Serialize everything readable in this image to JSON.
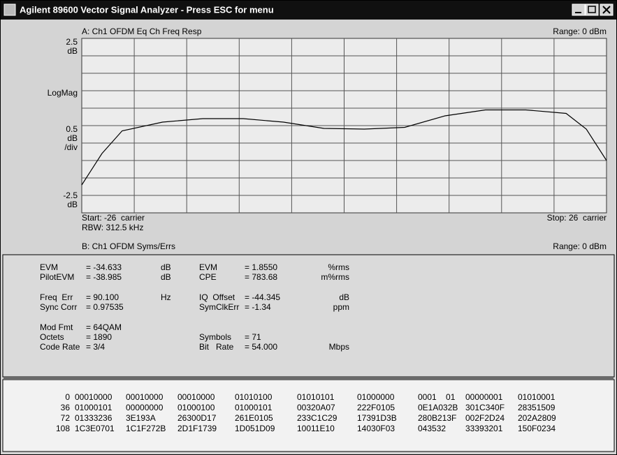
{
  "window": {
    "title": "Agilent 89600 Vector Signal Analyzer - Press ESC for menu"
  },
  "trace_panel": {
    "label": "A: Ch1 OFDM Eq Ch Freq Resp",
    "range": "Range: 0 dBm",
    "y_labels": {
      "top": [
        "2.5",
        "dB"
      ],
      "middle": "LogMag",
      "scale": [
        "0.5",
        "dB",
        "/div"
      ],
      "bottom": [
        "-2.5",
        "dB"
      ]
    },
    "start": "Start: -26  carrier",
    "stop": "Stop: 26  carrier",
    "rbw": "RBW: 312.5 kHz",
    "chart_data": {
      "type": "line",
      "x": [
        -26,
        -24,
        -22,
        -18,
        -14,
        -10,
        -6,
        -2,
        2,
        6,
        10,
        14,
        18,
        22,
        24,
        26
      ],
      "values": [
        -1.7,
        -0.8,
        -0.15,
        0.1,
        0.2,
        0.2,
        0.1,
        -0.08,
        -0.1,
        -0.05,
        0.28,
        0.45,
        0.45,
        0.35,
        -0.1,
        -1.0
      ],
      "xlim": [
        -26,
        26
      ],
      "ylim": [
        -2.5,
        2.5
      ],
      "color": "#000000"
    }
  },
  "measure_panel": {
    "label": "B: Ch1 OFDM Syms/Errs",
    "range": "Range: 0 dBm",
    "left": [
      {
        "name": "EVM",
        "value": "= -34.633",
        "unit": "dB"
      },
      {
        "name": "PilotEVM",
        "value": "= -38.985",
        "unit": "dB"
      },
      {
        "name": "Freq  Err",
        "value": "= 90.100",
        "unit": "Hz"
      },
      {
        "name": "Sync Corr",
        "value": "= 0.97535"
      },
      {
        "name": "Mod Fmt",
        "value": "= 64QAM"
      },
      {
        "name": "Octets",
        "value": "= 1890"
      },
      {
        "name": "Code Rate",
        "value": "= 3/4"
      }
    ],
    "right": [
      {
        "name": "EVM",
        "value": "= 1.8550",
        "unit": "%rms"
      },
      {
        "name": "CPE",
        "value": "= 783.68",
        "unit": "m%rms"
      },
      {
        "name": "IQ  Offset",
        "value": "= -44.345",
        "unit": "dB"
      },
      {
        "name": "SymClkErr",
        "value": "= -1.34",
        "unit": "ppm"
      },
      {
        "name": "Symbols",
        "value": "= 71"
      },
      {
        "name": "Bit   Rate",
        "value": "= 54.000",
        "unit": "Mbps"
      }
    ]
  },
  "hex_table": {
    "rows": [
      [
        "0",
        "00010000",
        "00010000",
        "00010000",
        "01010100",
        "01010101",
        "01000000",
        "0001    01",
        "00000001",
        "01010001"
      ],
      [
        "36",
        "01000101",
        "00000000",
        "01000100",
        "01000101",
        "00320A07",
        "222F0105",
        "0E1A032B",
        "301C340F",
        "28351509"
      ],
      [
        "72",
        "01333236",
        "3E193A",
        "26300D17",
        "261E0105",
        "233C1C29",
        "17391D3B",
        "280B213F",
        "002F2D24",
        "202A2809"
      ],
      [
        "108",
        "1C3E0701",
        "1C1F272B",
        "2D1F1739",
        "1D051D09",
        "10011E10",
        "14030F03",
        "043532",
        "33393201",
        "150F0234"
      ]
    ]
  }
}
